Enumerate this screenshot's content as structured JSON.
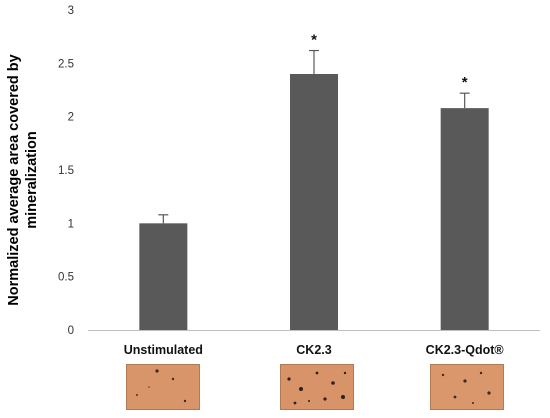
{
  "chart_data": {
    "type": "bar",
    "categories": [
      "Unstimulated",
      "CK2.3",
      "CK2.3-Qdot®"
    ],
    "values": [
      1.0,
      2.4,
      2.08
    ],
    "errors": [
      0.08,
      0.22,
      0.14
    ],
    "significance": [
      "",
      "*",
      "*"
    ],
    "ylabel": "Normalized average area covered by mineralization",
    "xlabel": "",
    "title": "",
    "ylim": [
      0,
      3
    ],
    "yticks": [
      "0",
      "0.5",
      "1",
      "1.5",
      "2",
      "2.5",
      "3"
    ],
    "grid": false,
    "bar_color": "#595959",
    "axis_color": "#bfbfbf"
  },
  "images": [
    {
      "caption": "Unstimulated"
    },
    {
      "caption": "CK2.3"
    },
    {
      "caption": "CK2.3-Qdot®"
    }
  ]
}
